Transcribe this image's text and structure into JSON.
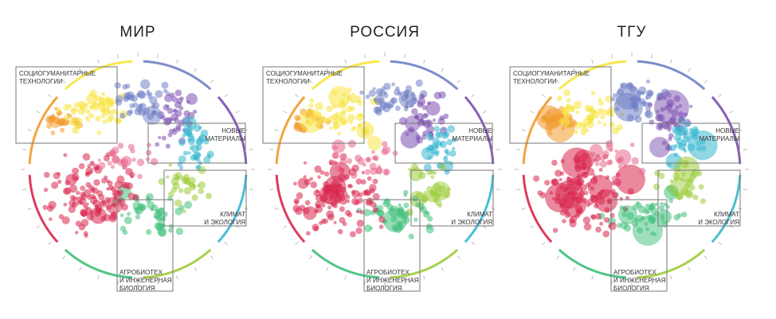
{
  "panels": [
    {
      "title": "МИР",
      "sizeScale": 1.0
    },
    {
      "title": "РОССИЯ",
      "sizeScale": 1.35
    },
    {
      "title": "ТГУ",
      "sizeScale": 1.7
    }
  ],
  "categories": {
    "socio": "СОЦИОГУМАНИТАРНЫЕ\nТЕХНОЛОГИИ",
    "materials": "НОВЫЕ\nМАТЕРИАЛЫ",
    "climate": "КЛИМАТ\nИ ЭКОЛОГИЯ",
    "agro": "АГРОБИОТЕХ\nИ ИНЖЕНЕРНАЯ\nБИОЛОГИЯ"
  },
  "colors": {
    "orange": "#f39a2e",
    "yellow": "#f7e43a",
    "blue": "#6f7fc4",
    "purple": "#7b4fb0",
    "cyan": "#36b7cf",
    "lime": "#9ccc3a",
    "green": "#3fbf7a",
    "red": "#d9264f",
    "pink": "#e8678a",
    "box": "#777777"
  }
}
